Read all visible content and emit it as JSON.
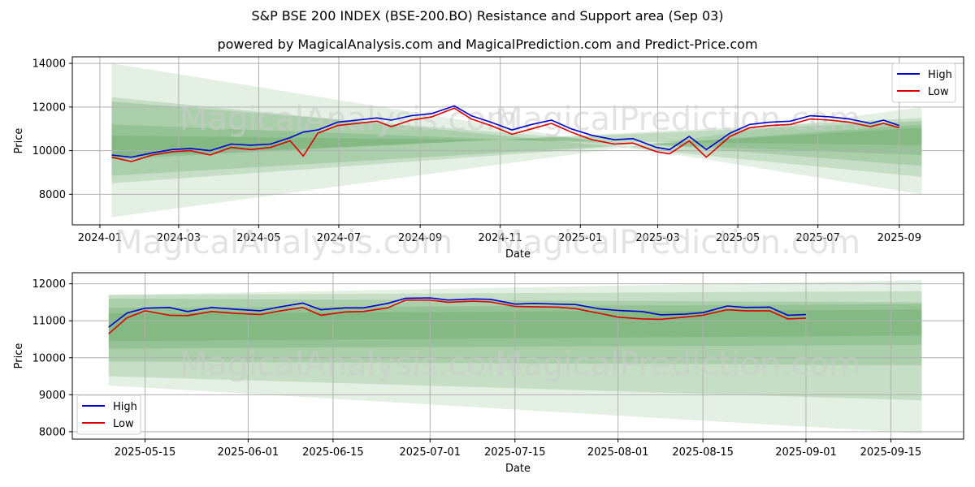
{
  "title": "S&P BSE 200 INDEX (BSE-200.BO) Resistance and Support area (Sep 03)",
  "subtitle": "powered by MagicalAnalysis.com and MagicalPrediction.com and Predict-Price.com",
  "watermarks": [
    "MagicalAnalysis.com",
    "MagicalPrediction.com"
  ],
  "colors": {
    "high": "#0000cc",
    "low": "#dd0000",
    "band": "#2e8b2e"
  },
  "chart_data": [
    {
      "type": "line",
      "xlabel": "Date",
      "ylabel": "Price",
      "x_ticks": [
        "2024-01",
        "2024-03",
        "2024-05",
        "2024-07",
        "2024-09",
        "2024-11",
        "2025-01",
        "2025-03",
        "2025-05",
        "2025-07",
        "2025-09"
      ],
      "y_ticks": [
        "8000",
        "10000",
        "12000",
        "14000"
      ],
      "ylim": [
        6600,
        14300
      ],
      "xlim": [
        "2023-12-11",
        "2025-10-20"
      ],
      "grid": true,
      "legend": "top-right",
      "series": [
        {
          "name": "High",
          "x": [
            "2024-01-10",
            "2024-01-25",
            "2024-02-10",
            "2024-02-25",
            "2024-03-10",
            "2024-03-25",
            "2024-04-10",
            "2024-04-25",
            "2024-05-10",
            "2024-05-25",
            "2024-06-04",
            "2024-06-15",
            "2024-06-30",
            "2024-07-15",
            "2024-07-30",
            "2024-08-10",
            "2024-08-25",
            "2024-09-10",
            "2024-09-27",
            "2024-10-10",
            "2024-10-25",
            "2024-11-10",
            "2024-11-25",
            "2024-12-10",
            "2024-12-25",
            "2025-01-10",
            "2025-01-27",
            "2025-02-10",
            "2025-02-28",
            "2025-03-10",
            "2025-03-25",
            "2025-04-07",
            "2025-04-25",
            "2025-05-10",
            "2025-05-25",
            "2025-06-10",
            "2025-06-25",
            "2025-07-10",
            "2025-07-25",
            "2025-08-10",
            "2025-08-20",
            "2025-09-01"
          ],
          "values": [
            9800,
            9700,
            9900,
            10050,
            10100,
            10000,
            10300,
            10250,
            10300,
            10600,
            10850,
            10950,
            11300,
            11400,
            11500,
            11400,
            11600,
            11700,
            12050,
            11600,
            11300,
            10950,
            11200,
            11400,
            11000,
            10700,
            10500,
            10550,
            10150,
            10050,
            10650,
            10050,
            10800,
            11200,
            11300,
            11350,
            11600,
            11550,
            11450,
            11250,
            11400,
            11150
          ]
        },
        {
          "name": "Low",
          "x": [
            "2024-01-10",
            "2024-01-25",
            "2024-02-10",
            "2024-02-25",
            "2024-03-10",
            "2024-03-25",
            "2024-04-10",
            "2024-04-25",
            "2024-05-10",
            "2024-05-25",
            "2024-06-04",
            "2024-06-15",
            "2024-06-30",
            "2024-07-15",
            "2024-07-30",
            "2024-08-10",
            "2024-08-25",
            "2024-09-10",
            "2024-09-27",
            "2024-10-10",
            "2024-10-25",
            "2024-11-10",
            "2024-11-25",
            "2024-12-10",
            "2024-12-25",
            "2025-01-10",
            "2025-01-27",
            "2025-02-10",
            "2025-02-28",
            "2025-03-10",
            "2025-03-25",
            "2025-04-07",
            "2025-04-25",
            "2025-05-10",
            "2025-05-25",
            "2025-06-10",
            "2025-06-25",
            "2025-07-10",
            "2025-07-25",
            "2025-08-10",
            "2025-08-20",
            "2025-09-01"
          ],
          "values": [
            9700,
            9500,
            9800,
            9950,
            10000,
            9800,
            10150,
            10050,
            10150,
            10450,
            9750,
            10800,
            11150,
            11250,
            11350,
            11100,
            11400,
            11550,
            11950,
            11450,
            11150,
            10750,
            11000,
            11250,
            10850,
            10500,
            10300,
            10350,
            9950,
            9850,
            10450,
            9700,
            10650,
            11050,
            11150,
            11200,
            11450,
            11400,
            11300,
            11100,
            11250,
            11050
          ]
        }
      ],
      "bands": [
        {
          "start": [
            14000,
            6950
          ],
          "end": [
            8000,
            12000
          ]
        },
        {
          "start": [
            12450,
            8500
          ],
          "end": [
            8800,
            11200
          ]
        },
        {
          "start": [
            12250,
            8850
          ],
          "end": [
            9300,
            11050
          ]
        },
        {
          "start": [
            11200,
            9600
          ],
          "end": [
            9800,
            11500
          ]
        },
        {
          "start": [
            10700,
            9700
          ],
          "end": [
            10250,
            11350
          ]
        }
      ]
    },
    {
      "type": "line",
      "xlabel": "Date",
      "ylabel": "Price",
      "x_ticks": [
        "2025-05-15",
        "2025-06-01",
        "2025-06-15",
        "2025-07-01",
        "2025-07-15",
        "2025-08-01",
        "2025-08-15",
        "2025-09-01",
        "2025-09-15"
      ],
      "y_ticks": [
        "8000",
        "9000",
        "10000",
        "11000",
        "12000"
      ],
      "ylim": [
        7800,
        12300
      ],
      "xlim": [
        "2025-05-03",
        "2025-09-27"
      ],
      "grid": true,
      "legend": "bottom-left",
      "series": [
        {
          "name": "High",
          "x": [
            "2025-05-09",
            "2025-05-12",
            "2025-05-15",
            "2025-05-19",
            "2025-05-22",
            "2025-05-26",
            "2025-05-30",
            "2025-06-03",
            "2025-06-06",
            "2025-06-10",
            "2025-06-13",
            "2025-06-17",
            "2025-06-20",
            "2025-06-24",
            "2025-06-27",
            "2025-07-01",
            "2025-07-04",
            "2025-07-08",
            "2025-07-11",
            "2025-07-15",
            "2025-07-18",
            "2025-07-22",
            "2025-07-25",
            "2025-07-29",
            "2025-08-01",
            "2025-08-05",
            "2025-08-08",
            "2025-08-12",
            "2025-08-15",
            "2025-08-19",
            "2025-08-22",
            "2025-08-26",
            "2025-08-29",
            "2025-09-01"
          ],
          "values": [
            10830,
            11210,
            11340,
            11360,
            11250,
            11360,
            11310,
            11270,
            11370,
            11480,
            11300,
            11350,
            11350,
            11470,
            11610,
            11620,
            11560,
            11590,
            11580,
            11450,
            11470,
            11450,
            11440,
            11320,
            11280,
            11250,
            11160,
            11180,
            11220,
            11400,
            11360,
            11370,
            11150,
            11170
          ]
        },
        {
          "name": "Low",
          "x": [
            "2025-05-09",
            "2025-05-12",
            "2025-05-15",
            "2025-05-19",
            "2025-05-22",
            "2025-05-26",
            "2025-05-30",
            "2025-06-03",
            "2025-06-06",
            "2025-06-10",
            "2025-06-13",
            "2025-06-17",
            "2025-06-20",
            "2025-06-24",
            "2025-06-27",
            "2025-07-01",
            "2025-07-04",
            "2025-07-08",
            "2025-07-11",
            "2025-07-15",
            "2025-07-18",
            "2025-07-22",
            "2025-07-25",
            "2025-07-29",
            "2025-08-01",
            "2025-08-05",
            "2025-08-08",
            "2025-08-12",
            "2025-08-15",
            "2025-08-19",
            "2025-08-22",
            "2025-08-26",
            "2025-08-29",
            "2025-09-01"
          ],
          "values": [
            10650,
            11080,
            11270,
            11150,
            11140,
            11250,
            11200,
            11170,
            11260,
            11360,
            11150,
            11240,
            11250,
            11350,
            11560,
            11560,
            11500,
            11530,
            11510,
            11390,
            11380,
            11370,
            11330,
            11200,
            11100,
            11050,
            11040,
            11100,
            11150,
            11300,
            11270,
            11270,
            11050,
            11070
          ]
        }
      ],
      "bands": [
        {
          "start": [
            11700,
            9250
          ],
          "end": [
            12100,
            7950
          ]
        },
        {
          "start": [
            11700,
            9500
          ],
          "end": [
            11800,
            8850
          ]
        },
        {
          "start": [
            11600,
            9900
          ],
          "end": [
            11500,
            9800
          ]
        },
        {
          "start": [
            11350,
            10250
          ],
          "end": [
            11450,
            10350
          ]
        },
        {
          "start": [
            11200,
            10450
          ],
          "end": [
            11300,
            10600
          ]
        }
      ]
    }
  ]
}
